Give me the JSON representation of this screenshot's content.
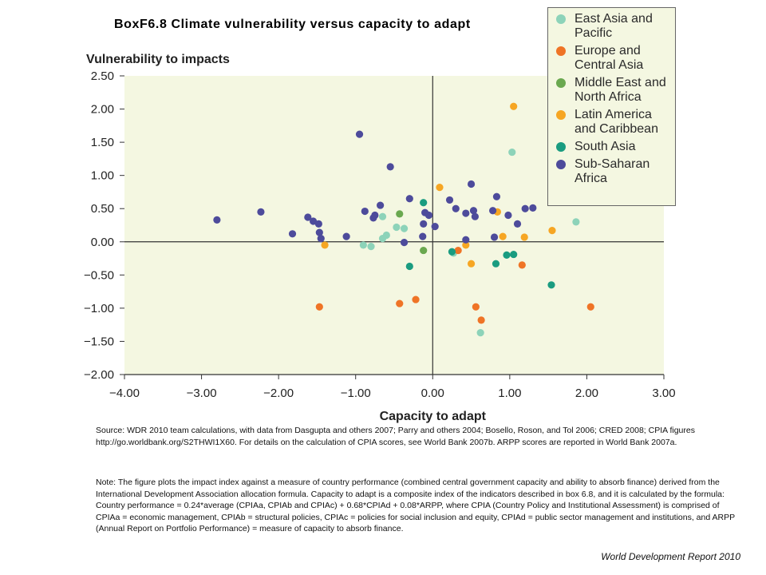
{
  "title": "BoxF6.8 Climate vulnerability versus capacity to adapt",
  "source_text": "Source: WDR 2010 team calculations, with data from Dasgupta and others 2007; Parry and others 2004; Bosello, Roson, and Tol 2006; CRED 2008; CPIA figures http://go.worldbank.org/S2THWI1X60. For details on the calculation of CPIA scores, see World Bank 2007b. ARPP scores are reported in World Bank 2007a.",
  "note_text": "Note: The figure plots the impact index against a measure of country performance (combined central government capacity and ability to absorb finance) derived from the International Development Association allocation formula. Capacity to adapt is a composite index of the indicators described in box 6.8, and it is calculated by the formula: Country performance = 0.24*average (CPIAa, CPIAb and CPIAc) + 0.68*CPIAd + 0.08*ARPP, where CPIA (Country Policy and Institutional Assessment) is comprised of CPIAa = economic management, CPIAb = structural policies, CPIAc = policies for social inclusion and equity, CPIAd = public sector management and institutions, and ARPP (Annual Report on Portfolio Performance) = measure of capacity to absorb finance.",
  "footer": "World Development Report 2010",
  "colors": {
    "plot_bg": "#f4f7e1",
    "axis": "#333333"
  },
  "chart_data": {
    "type": "scatter",
    "xlabel": "Capacity to adapt",
    "ylabel": "Vulnerability to impacts",
    "xlim": [
      -4.0,
      3.0
    ],
    "ylim": [
      -2.0,
      2.5
    ],
    "xticks": [
      -4,
      -3,
      -2,
      -1,
      0,
      1,
      2,
      3
    ],
    "yticks": [
      -2,
      -1.5,
      -1,
      -0.5,
      0,
      0.5,
      1,
      1.5,
      2,
      2.5
    ],
    "xtick_labels": [
      "−4.00",
      "−3.00",
      "−2.00",
      "−1.00",
      "0.00",
      "1.00",
      "2.00",
      "3.00"
    ],
    "ytick_labels": [
      "−2.00",
      "−1.50",
      "−1.00",
      "−0.50",
      "0.00",
      "0.50",
      "1.00",
      "1.50",
      "2.00",
      "2.50"
    ],
    "grid": false,
    "legend_position": "top-right",
    "series": [
      {
        "name": "East Asia and Pacific",
        "color": "#8dd3b9",
        "points": [
          [
            -0.9,
            -0.05
          ],
          [
            -0.8,
            -0.07
          ],
          [
            -0.65,
            0.05
          ],
          [
            -0.6,
            0.1
          ],
          [
            -0.65,
            0.38
          ],
          [
            -0.47,
            0.22
          ],
          [
            -0.37,
            0.2
          ],
          [
            0.27,
            -0.17
          ],
          [
            1.03,
            1.35
          ],
          [
            0.62,
            -1.37
          ],
          [
            1.86,
            0.3
          ]
        ]
      },
      {
        "name": "Europe and Central Asia",
        "color": "#ef7426",
        "points": [
          [
            -1.47,
            -0.98
          ],
          [
            -0.43,
            -0.93
          ],
          [
            -0.22,
            -0.87
          ],
          [
            0.33,
            -0.13
          ],
          [
            0.56,
            -0.98
          ],
          [
            0.63,
            -1.18
          ],
          [
            1.16,
            -0.35
          ],
          [
            2.05,
            -0.98
          ]
        ]
      },
      {
        "name": "Middle East and North Africa",
        "color": "#6aa84f",
        "points": [
          [
            -0.43,
            0.42
          ],
          [
            -0.12,
            -0.13
          ]
        ]
      },
      {
        "name": "Latin America and Caribbean",
        "color": "#f6a623",
        "points": [
          [
            -1.4,
            -0.05
          ],
          [
            0.09,
            0.82
          ],
          [
            0.43,
            -0.05
          ],
          [
            0.5,
            -0.33
          ],
          [
            0.84,
            0.45
          ],
          [
            0.91,
            0.08
          ],
          [
            1.05,
            2.04
          ],
          [
            1.19,
            0.07
          ],
          [
            1.55,
            0.17
          ]
        ]
      },
      {
        "name": "South Asia",
        "color": "#1a9c80",
        "points": [
          [
            -0.3,
            -0.37
          ],
          [
            -0.12,
            0.59
          ],
          [
            0.25,
            -0.15
          ],
          [
            0.82,
            -0.33
          ],
          [
            0.96,
            -0.2
          ],
          [
            1.05,
            -0.19
          ],
          [
            1.54,
            -0.65
          ]
        ]
      },
      {
        "name": "Sub-Saharan Africa",
        "color": "#4d4b9b",
        "points": [
          [
            -2.8,
            0.33
          ],
          [
            -2.23,
            0.45
          ],
          [
            -1.82,
            0.12
          ],
          [
            -1.62,
            0.37
          ],
          [
            -1.55,
            0.31
          ],
          [
            -1.48,
            0.27
          ],
          [
            -1.47,
            0.14
          ],
          [
            -1.45,
            0.05
          ],
          [
            -1.12,
            0.08
          ],
          [
            -0.95,
            1.62
          ],
          [
            -0.88,
            0.46
          ],
          [
            -0.77,
            0.36
          ],
          [
            -0.75,
            0.4
          ],
          [
            -0.68,
            0.55
          ],
          [
            -0.55,
            1.13
          ],
          [
            -0.37,
            -0.01
          ],
          [
            -0.3,
            0.65
          ],
          [
            -0.13,
            0.08
          ],
          [
            -0.12,
            0.27
          ],
          [
            -0.1,
            0.44
          ],
          [
            -0.05,
            0.4
          ],
          [
            0.03,
            0.23
          ],
          [
            0.22,
            0.63
          ],
          [
            0.3,
            0.5
          ],
          [
            0.43,
            0.43
          ],
          [
            0.5,
            0.87
          ],
          [
            0.53,
            0.47
          ],
          [
            0.55,
            0.38
          ],
          [
            0.43,
            0.03
          ],
          [
            0.78,
            0.47
          ],
          [
            0.8,
            0.07
          ],
          [
            0.83,
            0.68
          ],
          [
            0.98,
            0.4
          ],
          [
            1.1,
            0.27
          ],
          [
            1.2,
            0.5
          ],
          [
            1.3,
            0.51
          ]
        ]
      }
    ]
  }
}
